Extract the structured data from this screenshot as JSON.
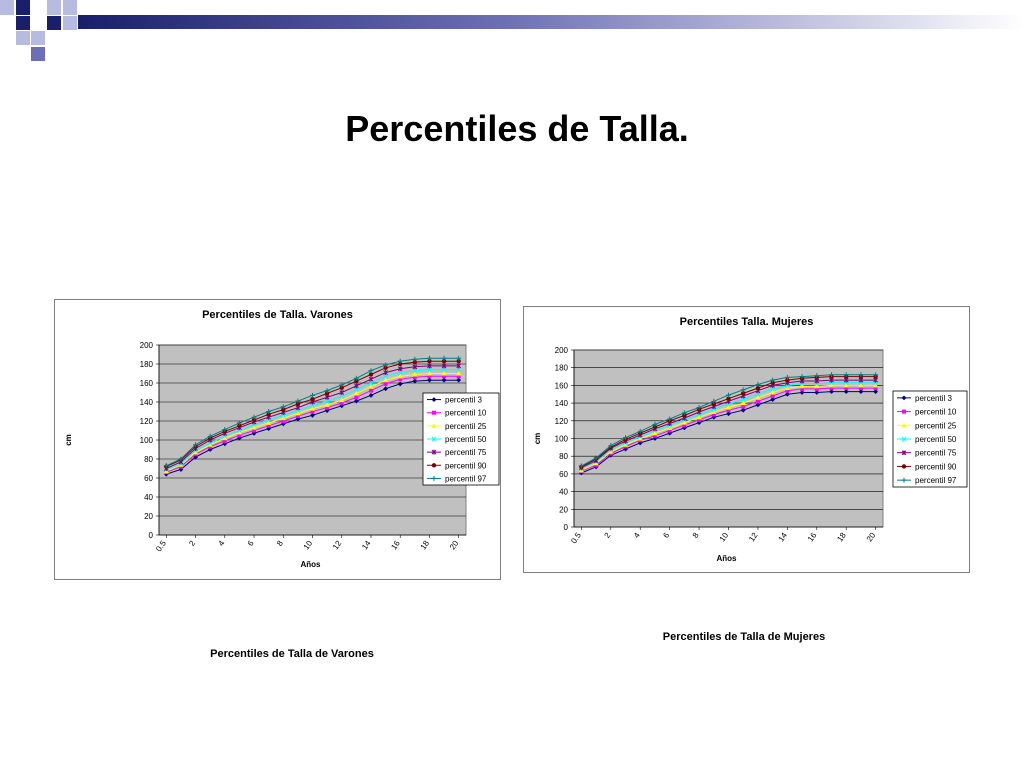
{
  "slide": {
    "title": "Percentiles de Talla.",
    "caption_left": "Percentiles de Talla de Varones",
    "caption_right": "Percentiles de Talla de Mujeres"
  },
  "colors": {
    "deco_dark": "#1a1f6b",
    "deco_mid": "#6c6fb4",
    "deco_light": "#b8bbe0",
    "plot_bg": "#c0c0c0",
    "grid": "#000000"
  },
  "chart_data": [
    {
      "type": "line",
      "title": "Percentiles de Talla. Varones",
      "xlabel": "Años",
      "ylabel": "cm",
      "ylim": [
        0,
        200
      ],
      "yticks": [
        0,
        20,
        40,
        60,
        80,
        100,
        120,
        140,
        160,
        180,
        200
      ],
      "x": [
        0.5,
        1,
        2,
        3,
        4,
        5,
        6,
        7,
        8,
        9,
        10,
        11,
        12,
        13,
        14,
        15,
        16,
        17,
        18,
        19,
        20
      ],
      "xtick_labels": [
        "0.5",
        "2",
        "4",
        "6",
        "8",
        "10",
        "12",
        "14",
        "16",
        "18",
        "20"
      ],
      "grid": true,
      "legend": "right",
      "series": [
        {
          "name": "percentil 3",
          "color": "#000080",
          "marker": "diamond",
          "values": [
            64,
            69,
            82,
            90,
            96,
            102,
            107,
            112,
            117,
            122,
            126,
            131,
            136,
            141,
            147,
            154,
            159,
            162,
            163,
            163,
            163
          ]
        },
        {
          "name": "percentil 10",
          "color": "#ff00ff",
          "marker": "square",
          "values": [
            66,
            72,
            85,
            93,
            99,
            105,
            110,
            115,
            120,
            125,
            130,
            134,
            139,
            145,
            152,
            159,
            164,
            166,
            167,
            167,
            167
          ]
        },
        {
          "name": "percentil 25",
          "color": "#ffff00",
          "marker": "triangle",
          "values": [
            67,
            74,
            87,
            95,
            102,
            108,
            113,
            118,
            123,
            128,
            133,
            137,
            142,
            149,
            156,
            163,
            167,
            169,
            170,
            170,
            170
          ]
        },
        {
          "name": "percentil 50",
          "color": "#00ffff",
          "marker": "x",
          "values": [
            69,
            75,
            89,
            97,
            104,
            110,
            116,
            121,
            126,
            131,
            136,
            141,
            146,
            153,
            160,
            167,
            171,
            173,
            174,
            174,
            174
          ]
        },
        {
          "name": "percentil 75",
          "color": "#800080",
          "marker": "star",
          "values": [
            70,
            77,
            91,
            100,
            107,
            113,
            119,
            124,
            129,
            134,
            140,
            145,
            150,
            157,
            164,
            171,
            175,
            177,
            178,
            178,
            178
          ]
        },
        {
          "name": "percentil 90",
          "color": "#800000",
          "marker": "circle",
          "values": [
            72,
            79,
            93,
            102,
            109,
            115,
            121,
            127,
            132,
            138,
            143,
            149,
            155,
            162,
            169,
            176,
            180,
            182,
            183,
            183,
            183
          ]
        },
        {
          "name": "percentil 97",
          "color": "#008080",
          "marker": "plus",
          "values": [
            73,
            80,
            95,
            104,
            111,
            118,
            124,
            130,
            135,
            141,
            147,
            152,
            158,
            165,
            173,
            179,
            183,
            185,
            186,
            186,
            186
          ]
        }
      ]
    },
    {
      "type": "line",
      "title": "Percentiles Talla. Mujeres",
      "xlabel": "Años",
      "ylabel": "cm",
      "ylim": [
        0,
        200
      ],
      "yticks": [
        0,
        20,
        40,
        60,
        80,
        100,
        120,
        140,
        160,
        180,
        200
      ],
      "x": [
        0.5,
        1,
        2,
        3,
        4,
        5,
        6,
        7,
        8,
        9,
        10,
        11,
        12,
        13,
        14,
        15,
        16,
        17,
        18,
        19,
        20
      ],
      "xtick_labels": [
        "0.5",
        "2",
        "4",
        "6",
        "8",
        "10",
        "12",
        "14",
        "16",
        "18",
        "20"
      ],
      "grid": true,
      "legend": "right",
      "series": [
        {
          "name": "percentil 3",
          "color": "#000080",
          "marker": "diamond",
          "values": [
            61,
            68,
            81,
            88,
            95,
            100,
            106,
            112,
            118,
            124,
            128,
            132,
            138,
            144,
            150,
            152,
            152,
            153,
            153,
            153,
            153
          ]
        },
        {
          "name": "percentil 10",
          "color": "#ff00ff",
          "marker": "square",
          "values": [
            63,
            70,
            83,
            91,
            98,
            103,
            109,
            115,
            121,
            127,
            132,
            136,
            142,
            148,
            154,
            156,
            156,
            157,
            157,
            157,
            157
          ]
        },
        {
          "name": "percentil 25",
          "color": "#ffff00",
          "marker": "triangle",
          "values": [
            64,
            72,
            85,
            93,
            100,
            106,
            112,
            118,
            124,
            130,
            135,
            140,
            146,
            152,
            157,
            159,
            159,
            160,
            160,
            160,
            160
          ]
        },
        {
          "name": "percentil 50",
          "color": "#00ffff",
          "marker": "x",
          "values": [
            66,
            74,
            87,
            95,
            102,
            109,
            115,
            121,
            127,
            133,
            139,
            144,
            150,
            156,
            160,
            162,
            162,
            163,
            163,
            163,
            163
          ]
        },
        {
          "name": "percentil 75",
          "color": "#800080",
          "marker": "star",
          "values": [
            67,
            75,
            89,
            97,
            104,
            111,
            117,
            123,
            130,
            136,
            142,
            148,
            154,
            160,
            163,
            165,
            165,
            166,
            166,
            166,
            166
          ]
        },
        {
          "name": "percentil 90",
          "color": "#800000",
          "marker": "circle",
          "values": [
            68,
            77,
            90,
            99,
            106,
            113,
            120,
            126,
            133,
            139,
            145,
            151,
            157,
            163,
            166,
            168,
            169,
            170,
            170,
            170,
            170
          ]
        },
        {
          "name": "percentil 97",
          "color": "#008080",
          "marker": "plus",
          "values": [
            69,
            78,
            92,
            101,
            108,
            116,
            122,
            129,
            135,
            142,
            149,
            155,
            161,
            166,
            169,
            170,
            171,
            172,
            172,
            172,
            172
          ]
        }
      ]
    }
  ]
}
